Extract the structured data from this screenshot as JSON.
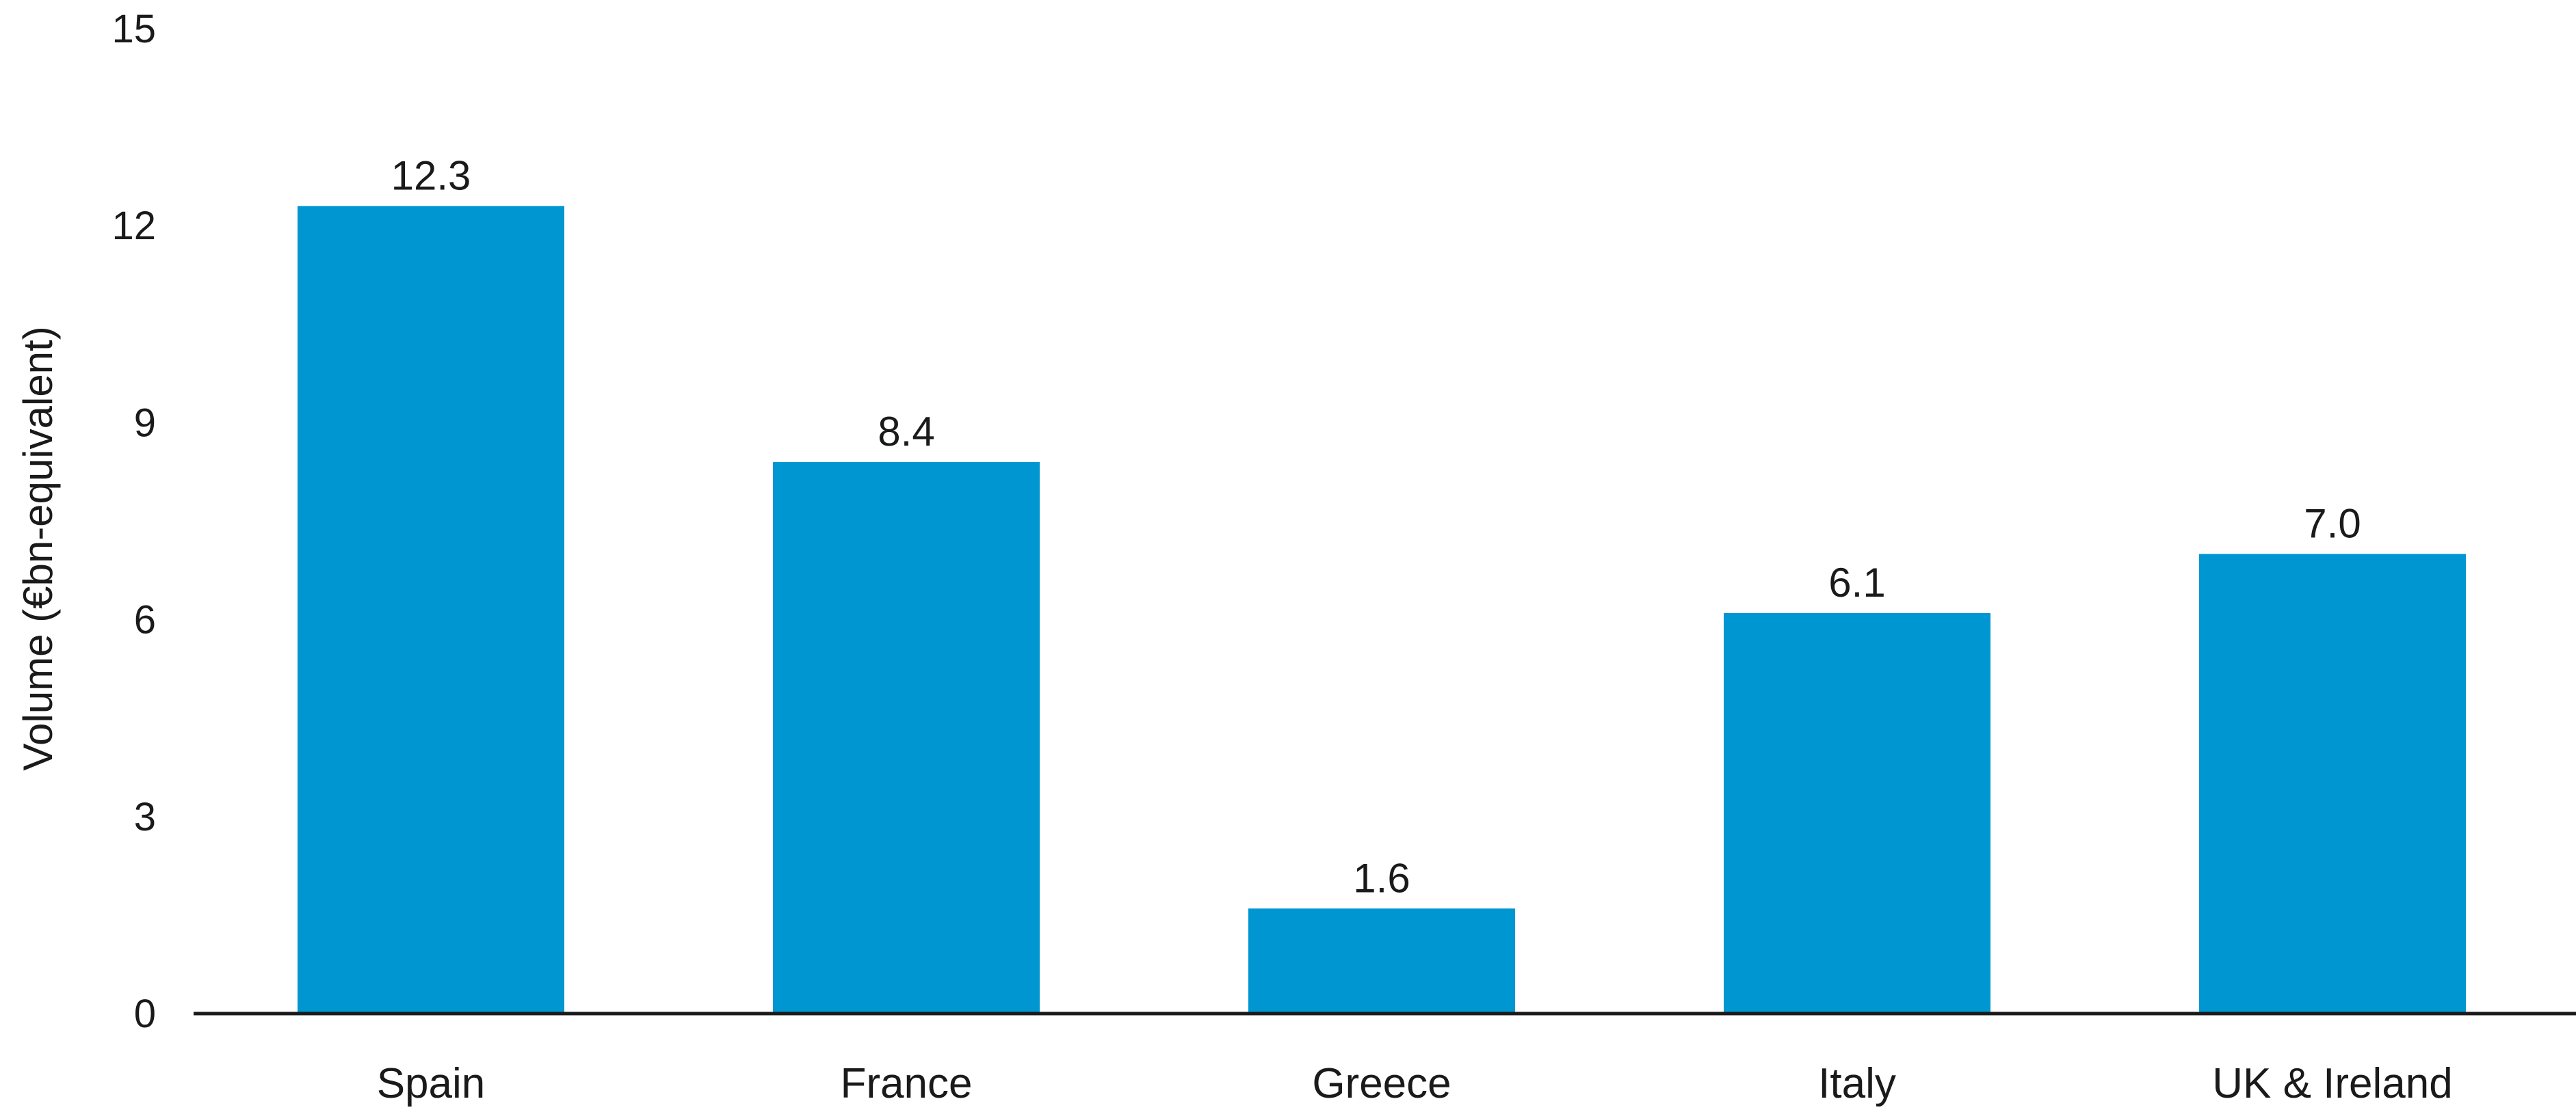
{
  "chart_data": {
    "type": "bar",
    "categories": [
      "Spain",
      "France",
      "Greece",
      "Italy",
      "UK & Ireland"
    ],
    "values": [
      12.3,
      8.4,
      1.6,
      6.1,
      7.0
    ],
    "data_labels": [
      "12.3",
      "8.4",
      "1.6",
      "6.1",
      "7.0"
    ],
    "ylabel": "Volume (€bn-equivalent)",
    "ylim": [
      0,
      15
    ],
    "yticks": [
      0,
      3,
      6,
      9,
      12,
      15
    ],
    "grid": false,
    "legend": "none",
    "bar_color": "#0096d2",
    "axis_color": "#1a1a1a"
  }
}
